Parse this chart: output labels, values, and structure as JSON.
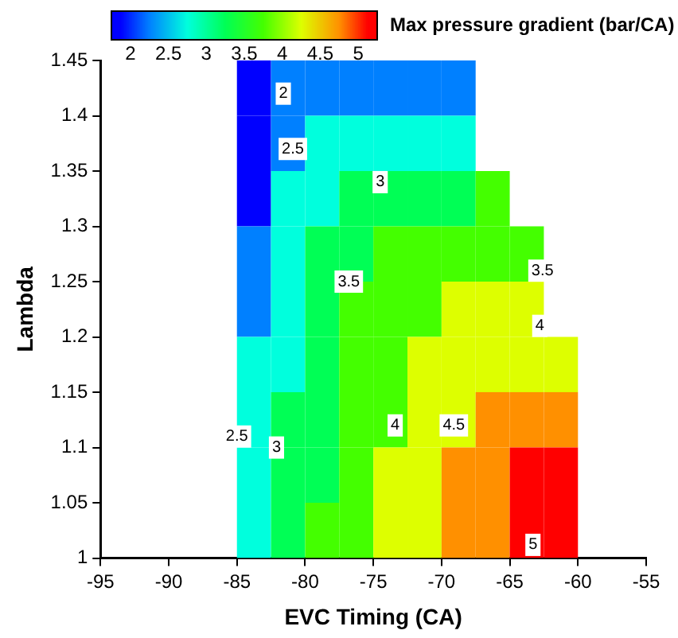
{
  "chart_data": {
    "type": "heatmap",
    "xlabel": "EVC Timing (CA)",
    "ylabel": "Lambda",
    "clabel": "Max pressure gradient (bar/CA)",
    "cells": [
      [
        null,
        null,
        null,
        null,
        1.875,
        2.25,
        2.25,
        2.25,
        2.25,
        2.25,
        2.25,
        null,
        null,
        null,
        null,
        null
      ],
      [
        null,
        null,
        null,
        null,
        1.875,
        2.25,
        2.75,
        2.75,
        2.75,
        2.75,
        2.75,
        null,
        null,
        null,
        null,
        null
      ],
      [
        null,
        null,
        null,
        null,
        1.875,
        2.75,
        2.75,
        3.25,
        3.25,
        3.25,
        3.25,
        3.75,
        null,
        null,
        null,
        null
      ],
      [
        null,
        null,
        null,
        null,
        2.25,
        2.75,
        3.25,
        3.25,
        3.75,
        3.75,
        3.75,
        3.75,
        3.75,
        null,
        null,
        null
      ],
      [
        null,
        null,
        null,
        null,
        2.25,
        2.75,
        3.25,
        3.75,
        3.75,
        3.75,
        4.25,
        4.25,
        4.25,
        null,
        null,
        null
      ],
      [
        null,
        null,
        null,
        null,
        2.75,
        2.75,
        3.25,
        3.75,
        3.75,
        4.25,
        4.25,
        4.25,
        4.25,
        4.25,
        null,
        null
      ],
      [
        null,
        null,
        null,
        null,
        2.75,
        3.25,
        3.25,
        3.75,
        3.75,
        4.25,
        4.25,
        4.75,
        4.75,
        4.75,
        null,
        null
      ],
      [
        null,
        null,
        null,
        null,
        2.75,
        3.25,
        3.25,
        3.75,
        4.25,
        4.25,
        4.75,
        4.75,
        5.125,
        5.125,
        null,
        null
      ],
      [
        null,
        null,
        null,
        null,
        2.75,
        3.25,
        3.75,
        3.75,
        4.25,
        4.25,
        4.75,
        4.75,
        5.125,
        5.125,
        null,
        null
      ]
    ],
    "clim": [
      1.75,
      5.25
    ],
    "cticks": [
      2,
      2.5,
      3,
      3.5,
      4,
      4.5,
      5
    ],
    "colors": [
      "#0000ff",
      "#0080ff",
      "#00ffdd",
      "#00ff55",
      "#44ff00",
      "#ddff00",
      "#ff9000",
      "#ff0000"
    ],
    "xlim": [
      -95,
      -55
    ],
    "xticks": [
      -95,
      -90,
      -85,
      -80,
      -75,
      -70,
      -65,
      -60,
      -55
    ],
    "ylim": [
      1,
      1.45
    ],
    "yticks": [
      1,
      1.05,
      1.1,
      1.15,
      1.2,
      1.25,
      1.3,
      1.35,
      1.4,
      1.45
    ],
    "annotations": [
      "2",
      "2.5",
      "3",
      "3.5",
      "3.5",
      "4",
      "2.5",
      "3",
      "4",
      "4.5",
      "5"
    ]
  }
}
